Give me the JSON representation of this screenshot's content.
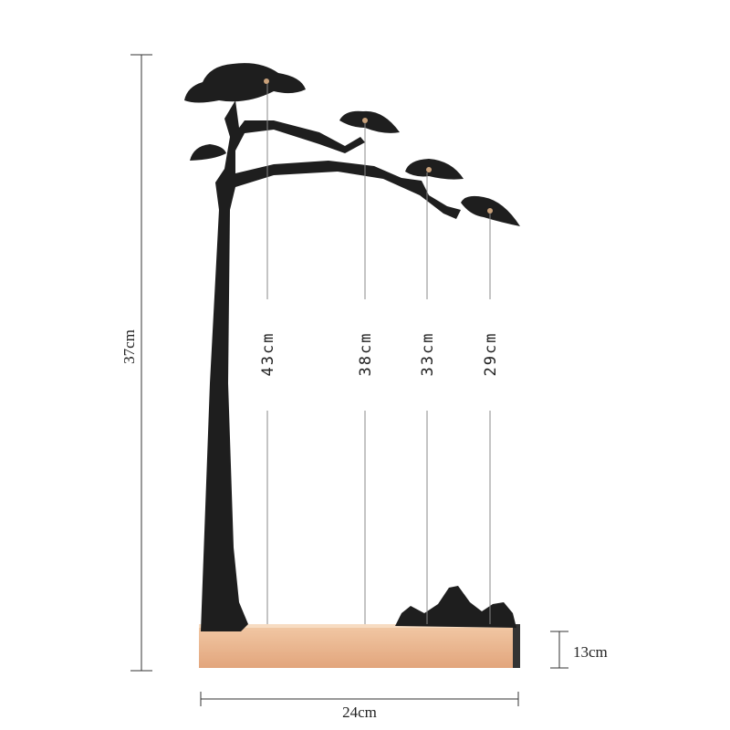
{
  "dimensions": {
    "height": "37cm",
    "width": "24cm",
    "base_height": "13cm"
  },
  "strings": [
    "43cm",
    "38cm",
    "33cm",
    "29cm"
  ]
}
